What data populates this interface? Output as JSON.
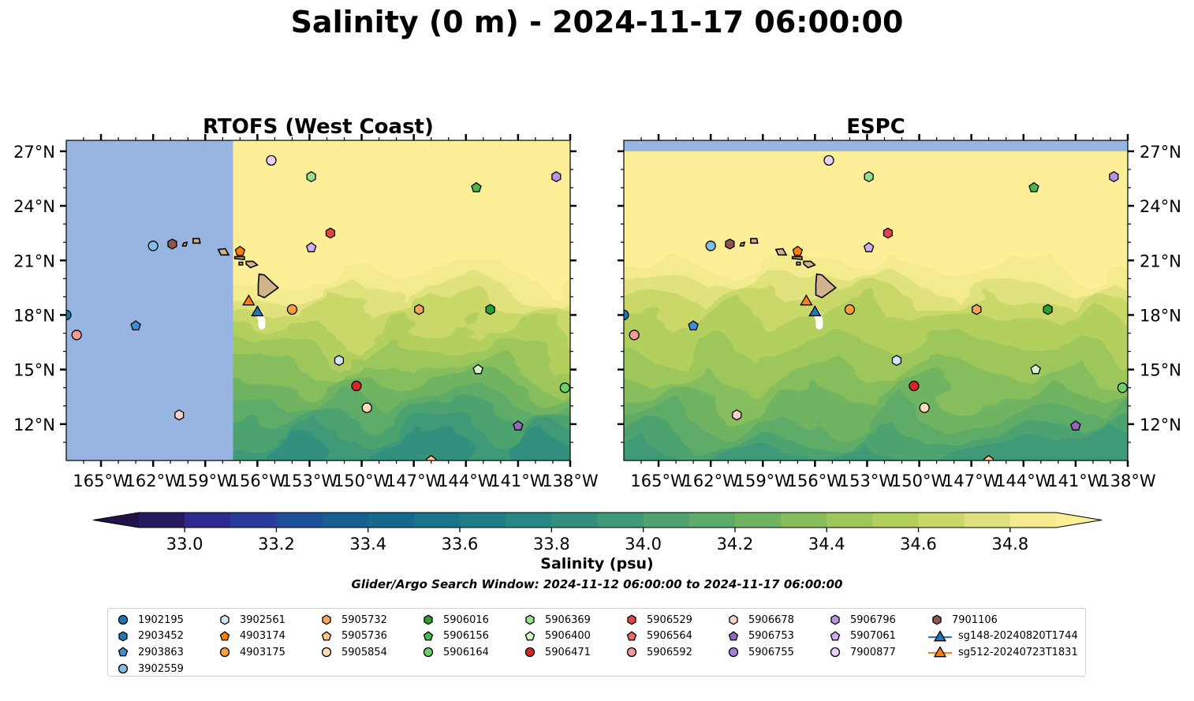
{
  "figure": {
    "title": "Salinity (0 m) - 2024-11-17 06:00:00",
    "colorbar_label": "Salinity (psu)",
    "search_window": "Glider/Argo Search Window: 2024-11-12 06:00:00 to 2024-11-17 06:00:00"
  },
  "panels": [
    {
      "id": "rtofs",
      "title": "RTOFS (West Coast)",
      "model_coverage_west_lon": -157.4
    },
    {
      "id": "espc",
      "title": "ESPC",
      "model_coverage_north_lat": 27.0
    }
  ],
  "map_extent": {
    "lon_min": -167,
    "lon_max": -138,
    "lat_min": 10,
    "lat_max": 27.6
  },
  "lon_ticks": [
    {
      "value": -165,
      "label": "165°W"
    },
    {
      "value": -162,
      "label": "162°W"
    },
    {
      "value": -159,
      "label": "159°W"
    },
    {
      "value": -156,
      "label": "156°W"
    },
    {
      "value": -153,
      "label": "153°W"
    },
    {
      "value": -150,
      "label": "150°W"
    },
    {
      "value": -147,
      "label": "147°W"
    },
    {
      "value": -144,
      "label": "144°W"
    },
    {
      "value": -141,
      "label": "141°W"
    },
    {
      "value": -138,
      "label": "138°W"
    }
  ],
  "lat_ticks": [
    {
      "value": 27,
      "label": "27°N"
    },
    {
      "value": 24,
      "label": "24°N"
    },
    {
      "value": 21,
      "label": "21°N"
    },
    {
      "value": 18,
      "label": "18°N"
    },
    {
      "value": 15,
      "label": "15°N"
    },
    {
      "value": 12,
      "label": "12°N"
    }
  ],
  "colorbar": {
    "min": 32.9,
    "max": 34.9,
    "step": 0.1,
    "extend": "both",
    "ticks": [
      {
        "value": 33.0,
        "label": "33.0"
      },
      {
        "value": 33.2,
        "label": "33.2"
      },
      {
        "value": 33.4,
        "label": "33.4"
      },
      {
        "value": 33.6,
        "label": "33.6"
      },
      {
        "value": 33.8,
        "label": "33.8"
      },
      {
        "value": 34.0,
        "label": "34.0"
      },
      {
        "value": 34.2,
        "label": "34.2"
      },
      {
        "value": 34.4,
        "label": "34.4"
      },
      {
        "value": 34.6,
        "label": "34.6"
      },
      {
        "value": 34.8,
        "label": "34.8"
      }
    ],
    "colors": [
      "#26185f",
      "#2e2890",
      "#2a3b9c",
      "#1d4e9a",
      "#155f92",
      "#15698d",
      "#19738b",
      "#1f7d88",
      "#278785",
      "#33907e",
      "#3f9a78",
      "#4ea370",
      "#5eac69",
      "#70b462",
      "#86be5d",
      "#9dc75a",
      "#b3d05e",
      "#cad86a",
      "#e0e27d",
      "#f4ea8e"
    ],
    "under_color": "#231249",
    "over_color": "#fdee98"
  },
  "colors": {
    "no_data": "#97b5e0",
    "land": "#d1b48c",
    "high_salinity": "#fdee98"
  },
  "islands": [
    {
      "name": "Hawaii",
      "points": [
        [
          -155.9,
          20.25
        ],
        [
          -155.6,
          20.2
        ],
        [
          -155.1,
          19.75
        ],
        [
          -154.8,
          19.5
        ],
        [
          -155.6,
          18.95
        ],
        [
          -155.95,
          19.1
        ],
        [
          -155.95,
          19.7
        ]
      ]
    },
    {
      "name": "Maui",
      "points": [
        [
          -156.65,
          20.95
        ],
        [
          -156.25,
          20.95
        ],
        [
          -156.0,
          20.75
        ],
        [
          -156.4,
          20.6
        ],
        [
          -156.65,
          20.8
        ]
      ]
    },
    {
      "name": "Molokai",
      "points": [
        [
          -157.3,
          21.2
        ],
        [
          -156.75,
          21.2
        ],
        [
          -156.75,
          21.05
        ],
        [
          -157.3,
          21.1
        ]
      ]
    },
    {
      "name": "Lanai",
      "points": [
        [
          -157.05,
          20.9
        ],
        [
          -156.85,
          20.9
        ],
        [
          -156.85,
          20.75
        ],
        [
          -157.05,
          20.75
        ]
      ]
    },
    {
      "name": "Oahu",
      "points": [
        [
          -158.25,
          21.6
        ],
        [
          -157.85,
          21.65
        ],
        [
          -157.65,
          21.3
        ],
        [
          -158.1,
          21.3
        ]
      ]
    },
    {
      "name": "Kauai",
      "points": [
        [
          -159.7,
          22.2
        ],
        [
          -159.35,
          22.2
        ],
        [
          -159.3,
          21.95
        ],
        [
          -159.7,
          21.95
        ]
      ]
    },
    {
      "name": "Niihau",
      "points": [
        [
          -160.25,
          21.95
        ],
        [
          -160.05,
          22.0
        ],
        [
          -160.1,
          21.8
        ],
        [
          -160.3,
          21.8
        ]
      ]
    }
  ],
  "markers": [
    {
      "id": "1902195",
      "lon": -167.0,
      "lat": 18.0,
      "shape": "circle",
      "color": "#1f77b4"
    },
    {
      "id": "2903452",
      "lon": -167.6,
      "lat": 17.0,
      "shape": "hexagon",
      "color": "#1f77b4"
    },
    {
      "id": "2903863",
      "lon": -163.0,
      "lat": 17.4,
      "shape": "pentagon",
      "color": "#3a8fd1"
    },
    {
      "id": "3902559",
      "lon": -162.0,
      "lat": 21.8,
      "shape": "circle",
      "color": "#7fbfe8"
    },
    {
      "id": "3902561",
      "lon": -151.3,
      "lat": 15.5,
      "shape": "hexagon",
      "color": "#cfe8fa"
    },
    {
      "id": "4903174",
      "lon": -157.0,
      "lat": 21.5,
      "shape": "pentagon",
      "color": "#ff7f0e"
    },
    {
      "id": "4903175",
      "lon": -154.0,
      "lat": 18.3,
      "shape": "circle",
      "color": "#ff9f3a"
    },
    {
      "id": "5905732",
      "lon": -146.7,
      "lat": 18.3,
      "shape": "hexagon",
      "color": "#f7a55f"
    },
    {
      "id": "5905736",
      "lon": -146.0,
      "lat": 10.0,
      "shape": "pentagon",
      "color": "#fdc58c"
    },
    {
      "id": "5905854",
      "lon": -149.7,
      "lat": 12.9,
      "shape": "circle",
      "color": "#fddcb8"
    },
    {
      "id": "5906016",
      "lon": -142.6,
      "lat": 18.3,
      "shape": "hexagon",
      "color": "#2ca02c"
    },
    {
      "id": "5906156",
      "lon": -143.4,
      "lat": 25.0,
      "shape": "pentagon",
      "color": "#4cb84c"
    },
    {
      "id": "5906164",
      "lon": -138.3,
      "lat": 14.0,
      "shape": "circle",
      "color": "#6cd06c"
    },
    {
      "id": "5906369",
      "lon": -152.9,
      "lat": 25.6,
      "shape": "hexagon",
      "color": "#98df8a"
    },
    {
      "id": "5906400",
      "lon": -143.3,
      "lat": 15.0,
      "shape": "pentagon",
      "color": "#d4f5c8"
    },
    {
      "id": "5906471",
      "lon": -150.3,
      "lat": 14.1,
      "shape": "circle",
      "color": "#d62728"
    },
    {
      "id": "5906529",
      "lon": -151.8,
      "lat": 22.5,
      "shape": "hexagon",
      "color": "#e04545"
    },
    {
      "id": "5906564",
      "lon": -167.6,
      "lat": 22.6,
      "shape": "pentagon",
      "color": "#ea6a6a"
    },
    {
      "id": "5906592",
      "lon": -166.4,
      "lat": 16.9,
      "shape": "circle",
      "color": "#f29a95"
    },
    {
      "id": "5906678",
      "lon": -160.5,
      "lat": 12.5,
      "shape": "hexagon",
      "color": "#fdd0cc"
    },
    {
      "id": "5906753",
      "lon": -141.0,
      "lat": 11.9,
      "shape": "pentagon",
      "color": "#9467bd"
    },
    {
      "id": "5906755",
      "lon": -168.0,
      "lat": 10.8,
      "shape": "circle",
      "color": "#a77fd3"
    },
    {
      "id": "5906796",
      "lon": -138.8,
      "lat": 25.6,
      "shape": "hexagon",
      "color": "#b893e6"
    },
    {
      "id": "5907061",
      "lon": -152.9,
      "lat": 21.7,
      "shape": "pentagon",
      "color": "#cfb0f0"
    },
    {
      "id": "7900877",
      "lon": -155.2,
      "lat": 26.5,
      "shape": "circle",
      "color": "#e6d2fa"
    },
    {
      "id": "7901106",
      "lon": -160.9,
      "lat": 21.9,
      "shape": "hexagon",
      "color": "#8c564b"
    },
    {
      "id": "sg148-20240820T1744",
      "lon": -156.0,
      "lat": 18.2,
      "shape": "triangle",
      "color": "#1f77b4"
    },
    {
      "id": "sg512-20240723T1831",
      "lon": -156.5,
      "lat": 18.8,
      "shape": "triangle",
      "color": "#ff7f0e"
    }
  ],
  "glider_tracks": [
    {
      "id": "sg148-20240820T1744",
      "color": "#ffffff",
      "points": [
        [
          -156.0,
          18.2
        ],
        [
          -155.85,
          18.0
        ],
        [
          -155.75,
          17.7
        ],
        [
          -155.75,
          17.4
        ]
      ]
    }
  ]
}
